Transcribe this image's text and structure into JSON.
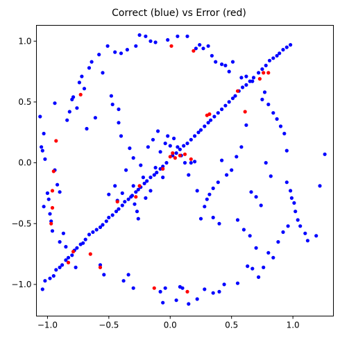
{
  "chart_data": {
    "type": "scatter",
    "title": "Correct (blue) vs Error (red)",
    "xlabel": "",
    "ylabel": "",
    "xlim": [
      -1.09,
      1.33
    ],
    "ylim": [
      -1.26,
      1.13
    ],
    "xticks": [
      -1.0,
      -0.5,
      0.0,
      0.5,
      1.0
    ],
    "xtick_labels": [
      "−1.0",
      "−0.5",
      "0.0",
      "0.5",
      "1.0"
    ],
    "yticks": [
      -1.0,
      -0.5,
      0.0,
      0.5,
      1.0
    ],
    "ytick_labels": [
      "−1.0",
      "−0.5",
      "0.0",
      "0.5",
      "1.0"
    ],
    "grid": false,
    "legend": "none",
    "series": [
      {
        "color": "#0000ff",
        "points": [
          [
            -1.04,
            -1.04
          ],
          [
            -1.02,
            -0.97
          ],
          [
            -0.98,
            -0.95
          ],
          [
            -0.95,
            -0.93
          ],
          [
            -0.93,
            -0.88
          ],
          [
            -0.9,
            -0.86
          ],
          [
            -0.88,
            -0.84
          ],
          [
            -0.85,
            -0.8
          ],
          [
            -0.83,
            -0.78
          ],
          [
            -0.8,
            -0.76
          ],
          [
            -0.78,
            -0.72
          ],
          [
            -0.76,
            -0.7
          ],
          [
            -0.73,
            -0.67
          ],
          [
            -0.71,
            -0.66
          ],
          [
            -0.69,
            -0.63
          ],
          [
            -0.66,
            -0.59
          ],
          [
            -0.63,
            -0.57
          ],
          [
            -0.6,
            -0.55
          ],
          [
            -0.57,
            -0.53
          ],
          [
            -0.55,
            -0.51
          ],
          [
            -0.52,
            -0.48
          ],
          [
            -0.5,
            -0.45
          ],
          [
            -0.47,
            -0.43
          ],
          [
            -0.44,
            -0.4
          ],
          [
            -0.42,
            -0.38
          ],
          [
            -0.39,
            -0.35
          ],
          [
            -0.37,
            -0.32
          ],
          [
            -0.34,
            -0.3
          ],
          [
            -0.31,
            -0.27
          ],
          [
            -0.28,
            -0.24
          ],
          [
            -0.26,
            -0.22
          ],
          [
            -0.24,
            -0.2
          ],
          [
            -0.21,
            -0.17
          ],
          [
            -0.19,
            -0.15
          ],
          [
            -0.16,
            -0.12
          ],
          [
            -0.13,
            -0.1
          ],
          [
            -0.11,
            -0.08
          ],
          [
            -0.08,
            -0.05
          ],
          [
            -0.06,
            -0.03
          ],
          [
            -0.03,
            0.0
          ],
          [
            0.02,
            0.06
          ],
          [
            0.05,
            0.08
          ],
          [
            0.08,
            0.11
          ],
          [
            0.11,
            0.14
          ],
          [
            0.14,
            0.16
          ],
          [
            0.17,
            0.19
          ],
          [
            0.2,
            0.22
          ],
          [
            0.23,
            0.25
          ],
          [
            0.25,
            0.27
          ],
          [
            0.28,
            0.3
          ],
          [
            0.31,
            0.33
          ],
          [
            0.33,
            0.35
          ],
          [
            0.36,
            0.38
          ],
          [
            0.39,
            0.41
          ],
          [
            0.42,
            0.44
          ],
          [
            0.45,
            0.47
          ],
          [
            0.48,
            0.5
          ],
          [
            0.51,
            0.53
          ],
          [
            0.53,
            0.55
          ],
          [
            0.56,
            0.59
          ],
          [
            0.59,
            0.62
          ],
          [
            0.62,
            0.64
          ],
          [
            0.65,
            0.67
          ],
          [
            0.68,
            0.7
          ],
          [
            0.72,
            0.74
          ],
          [
            0.75,
            0.77
          ],
          [
            0.78,
            0.8
          ],
          [
            0.81,
            0.84
          ],
          [
            0.84,
            0.86
          ],
          [
            0.87,
            0.88
          ],
          [
            0.89,
            0.9
          ],
          [
            0.92,
            0.93
          ],
          [
            0.95,
            0.95
          ],
          [
            0.98,
            0.97
          ],
          [
            -1.06,
            0.38
          ],
          [
            -1.05,
            0.13
          ],
          [
            -1.04,
            0.1
          ],
          [
            -1.03,
            0.24
          ],
          [
            -1.02,
            0.03
          ],
          [
            -1.0,
            -0.25
          ],
          [
            -0.99,
            -0.3
          ],
          [
            -1.03,
            -0.36
          ],
          [
            -0.98,
            -0.42
          ],
          [
            -0.97,
            -0.48
          ],
          [
            -0.96,
            -0.56
          ],
          [
            -0.94,
            -0.06
          ],
          [
            -0.94,
            0.49
          ],
          [
            -0.92,
            -0.18
          ],
          [
            -0.9,
            -0.24
          ],
          [
            -0.9,
            -0.65
          ],
          [
            -0.87,
            -0.58
          ],
          [
            -0.85,
            -0.69
          ],
          [
            -0.84,
            0.35
          ],
          [
            -0.82,
            0.42
          ],
          [
            -0.8,
            0.52
          ],
          [
            -0.79,
            0.54
          ],
          [
            -0.77,
            -0.86
          ],
          [
            -0.76,
            0.45
          ],
          [
            -0.74,
            0.66
          ],
          [
            -0.72,
            0.71
          ],
          [
            -0.7,
            0.61
          ],
          [
            -0.68,
            0.28
          ],
          [
            -0.66,
            0.78
          ],
          [
            -0.64,
            0.83
          ],
          [
            -0.61,
            0.37
          ],
          [
            -0.58,
            0.89
          ],
          [
            -0.57,
            -0.84
          ],
          [
            -0.55,
            0.74
          ],
          [
            -0.54,
            -0.92
          ],
          [
            -0.51,
            0.96
          ],
          [
            -0.48,
            0.55
          ],
          [
            -0.47,
            0.48
          ],
          [
            -0.45,
            0.91
          ],
          [
            -0.43,
            -0.31
          ],
          [
            -0.42,
            0.44
          ],
          [
            -0.4,
            0.9
          ],
          [
            -0.38,
            -0.97
          ],
          [
            -0.35,
            0.93
          ],
          [
            -0.34,
            -0.92
          ],
          [
            -0.3,
            -1.03
          ],
          [
            -0.28,
            0.96
          ],
          [
            -0.25,
            1.05
          ],
          [
            -0.2,
            1.04
          ],
          [
            -0.16,
            1.0
          ],
          [
            -0.12,
            0.99
          ],
          [
            -0.08,
            -1.06
          ],
          [
            -0.06,
            -1.15
          ],
          [
            -0.04,
            -1.03
          ],
          [
            -0.02,
            1.01
          ],
          [
            0.05,
            -1.13
          ],
          [
            0.06,
            1.04
          ],
          [
            0.08,
            -1.02
          ],
          [
            0.1,
            -1.03
          ],
          [
            0.14,
            1.04
          ],
          [
            0.15,
            -1.16
          ],
          [
            0.21,
            0.94
          ],
          [
            0.24,
            0.97
          ],
          [
            0.27,
            0.94
          ],
          [
            0.31,
            0.96
          ],
          [
            0.34,
            0.88
          ],
          [
            0.37,
            0.83
          ],
          [
            0.42,
            0.81
          ],
          [
            0.45,
            0.8
          ],
          [
            0.48,
            0.75
          ],
          [
            0.51,
            0.83
          ],
          [
            0.58,
            0.7
          ],
          [
            0.62,
            0.71
          ],
          [
            0.67,
            0.67
          ],
          [
            0.75,
            0.52
          ],
          [
            0.77,
            0.58
          ],
          [
            0.8,
            0.48
          ],
          [
            0.84,
            0.41
          ],
          [
            0.87,
            0.36
          ],
          [
            0.9,
            0.3
          ],
          [
            0.93,
            0.24
          ],
          [
            0.95,
            0.1
          ],
          [
            0.95,
            -0.16
          ],
          [
            0.98,
            -0.23
          ],
          [
            0.99,
            -0.29
          ],
          [
            1.01,
            -0.33
          ],
          [
            1.02,
            -0.4
          ],
          [
            1.04,
            -0.47
          ],
          [
            1.06,
            -0.52
          ],
          [
            1.1,
            -0.58
          ],
          [
            1.12,
            -0.64
          ],
          [
            1.19,
            -0.6
          ],
          [
            1.22,
            -0.19
          ],
          [
            1.26,
            0.07
          ],
          [
            0.96,
            -0.52
          ],
          [
            0.92,
            -0.57
          ],
          [
            0.88,
            -0.65
          ],
          [
            0.84,
            -0.78
          ],
          [
            0.8,
            -0.74
          ],
          [
            0.76,
            -0.86
          ],
          [
            0.72,
            -0.94
          ],
          [
            0.67,
            -0.87
          ],
          [
            0.63,
            -0.85
          ],
          [
            0.55,
            -0.99
          ],
          [
            0.44,
            -1.0
          ],
          [
            0.4,
            -1.06
          ],
          [
            0.35,
            -1.07
          ],
          [
            0.28,
            -1.04
          ],
          [
            0.22,
            -1.12
          ],
          [
            -0.3,
            -0.19
          ],
          [
            -0.27,
            -0.4
          ],
          [
            -0.26,
            -0.46
          ],
          [
            -0.24,
            -0.02
          ],
          [
            -0.22,
            -0.12
          ],
          [
            -0.2,
            -0.29
          ],
          [
            -0.18,
            0.13
          ],
          [
            -0.16,
            -0.23
          ],
          [
            -0.14,
            0.19
          ],
          [
            -0.12,
            -0.04
          ],
          [
            -0.1,
            0.26
          ],
          [
            -0.08,
            0.09
          ],
          [
            -0.06,
            -0.12
          ],
          [
            -0.04,
            0.16
          ],
          [
            -0.02,
            0.22
          ],
          [
            0.0,
            0.14
          ],
          [
            0.03,
            0.2
          ],
          [
            0.06,
            0.13
          ],
          [
            0.09,
            0.06
          ],
          [
            0.12,
            0.0
          ],
          [
            0.15,
            -0.1
          ],
          [
            0.17,
            0.0
          ],
          [
            0.2,
            0.01
          ],
          [
            0.22,
            -0.23
          ],
          [
            0.25,
            -0.46
          ],
          [
            0.28,
            -0.36
          ],
          [
            0.32,
            -0.26
          ],
          [
            0.35,
            -0.21
          ],
          [
            0.39,
            -0.16
          ],
          [
            0.42,
            0.02
          ],
          [
            0.46,
            -0.1
          ],
          [
            0.5,
            -0.06
          ],
          [
            0.54,
            0.05
          ],
          [
            0.58,
            0.13
          ],
          [
            0.62,
            0.31
          ],
          [
            0.66,
            -0.24
          ],
          [
            0.7,
            -0.28
          ],
          [
            0.74,
            -0.35
          ],
          [
            0.78,
            0.0
          ],
          [
            0.82,
            -0.11
          ],
          [
            -0.36,
            -0.06
          ],
          [
            -0.33,
            0.12
          ],
          [
            -0.3,
            0.04
          ],
          [
            -0.4,
            0.22
          ],
          [
            -0.45,
            -0.19
          ],
          [
            -0.5,
            -0.26
          ],
          [
            -0.42,
            0.33
          ],
          [
            -0.39,
            -0.25
          ],
          [
            -0.32,
            -0.28
          ],
          [
            -0.29,
            -0.34
          ],
          [
            0.55,
            -0.47
          ],
          [
            0.6,
            -0.55
          ],
          [
            0.65,
            -0.6
          ],
          [
            0.7,
            -0.7
          ],
          [
            0.3,
            -0.3
          ],
          [
            0.35,
            -0.45
          ],
          [
            0.4,
            -0.5
          ]
        ]
      },
      {
        "color": "#ff0000",
        "points": [
          [
            -0.95,
            -0.07
          ],
          [
            -0.97,
            -0.5
          ],
          [
            -0.96,
            -0.37
          ],
          [
            -0.96,
            -0.23
          ],
          [
            -0.93,
            0.18
          ],
          [
            -0.83,
            -0.82
          ],
          [
            -0.79,
            -0.73
          ],
          [
            -0.73,
            0.56
          ],
          [
            -0.65,
            -0.75
          ],
          [
            -0.57,
            -0.86
          ],
          [
            -0.43,
            -0.32
          ],
          [
            -0.28,
            -0.28
          ],
          [
            -0.25,
            -0.19
          ],
          [
            -0.13,
            -1.03
          ],
          [
            -0.06,
            -0.05
          ],
          [
            0.0,
            0.05
          ],
          [
            0.01,
            0.96
          ],
          [
            0.04,
            0.04
          ],
          [
            0.02,
            0.08
          ],
          [
            0.08,
            0.06
          ],
          [
            0.12,
            0.07
          ],
          [
            0.14,
            -1.06
          ],
          [
            0.17,
            0.03
          ],
          [
            0.19,
            0.92
          ],
          [
            0.3,
            0.39
          ],
          [
            0.32,
            0.4
          ],
          [
            0.55,
            0.59
          ],
          [
            0.61,
            0.42
          ],
          [
            0.73,
            0.69
          ],
          [
            0.76,
            0.74
          ],
          [
            0.8,
            0.74
          ]
        ]
      }
    ]
  }
}
